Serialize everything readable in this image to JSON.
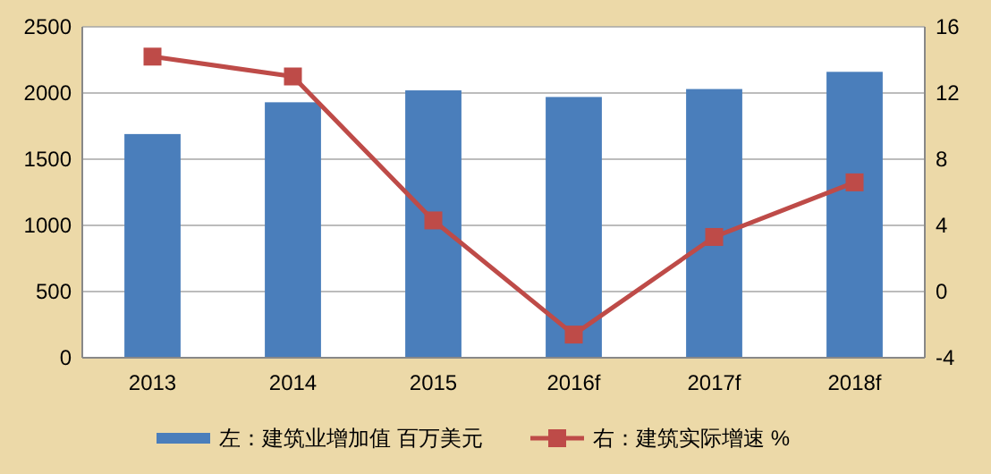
{
  "chart_data": {
    "type": "bar",
    "categories": [
      "2013",
      "2014",
      "2015",
      "2016f",
      "2017f",
      "2018f"
    ],
    "series": [
      {
        "name": "左：建筑业增加值 百万美元",
        "color": "#4a7ebb",
        "values": [
          1690,
          1930,
          2020,
          1970,
          2030,
          2160
        ]
      },
      {
        "name": "右：建筑实际增速 %",
        "type": "line",
        "axis": "y2",
        "color": "#be4b48",
        "marker": "square",
        "values": [
          14.2,
          13.0,
          4.3,
          -2.6,
          3.3,
          6.6
        ]
      }
    ],
    "ylim": [
      0,
      2500
    ],
    "yticks": [
      0,
      500,
      1000,
      1500,
      2000,
      2500
    ],
    "y2lim": [
      -4,
      16
    ],
    "y2ticks": [
      -4,
      0,
      4,
      8,
      12,
      16
    ],
    "grid": "y",
    "legend": "bottom"
  }
}
